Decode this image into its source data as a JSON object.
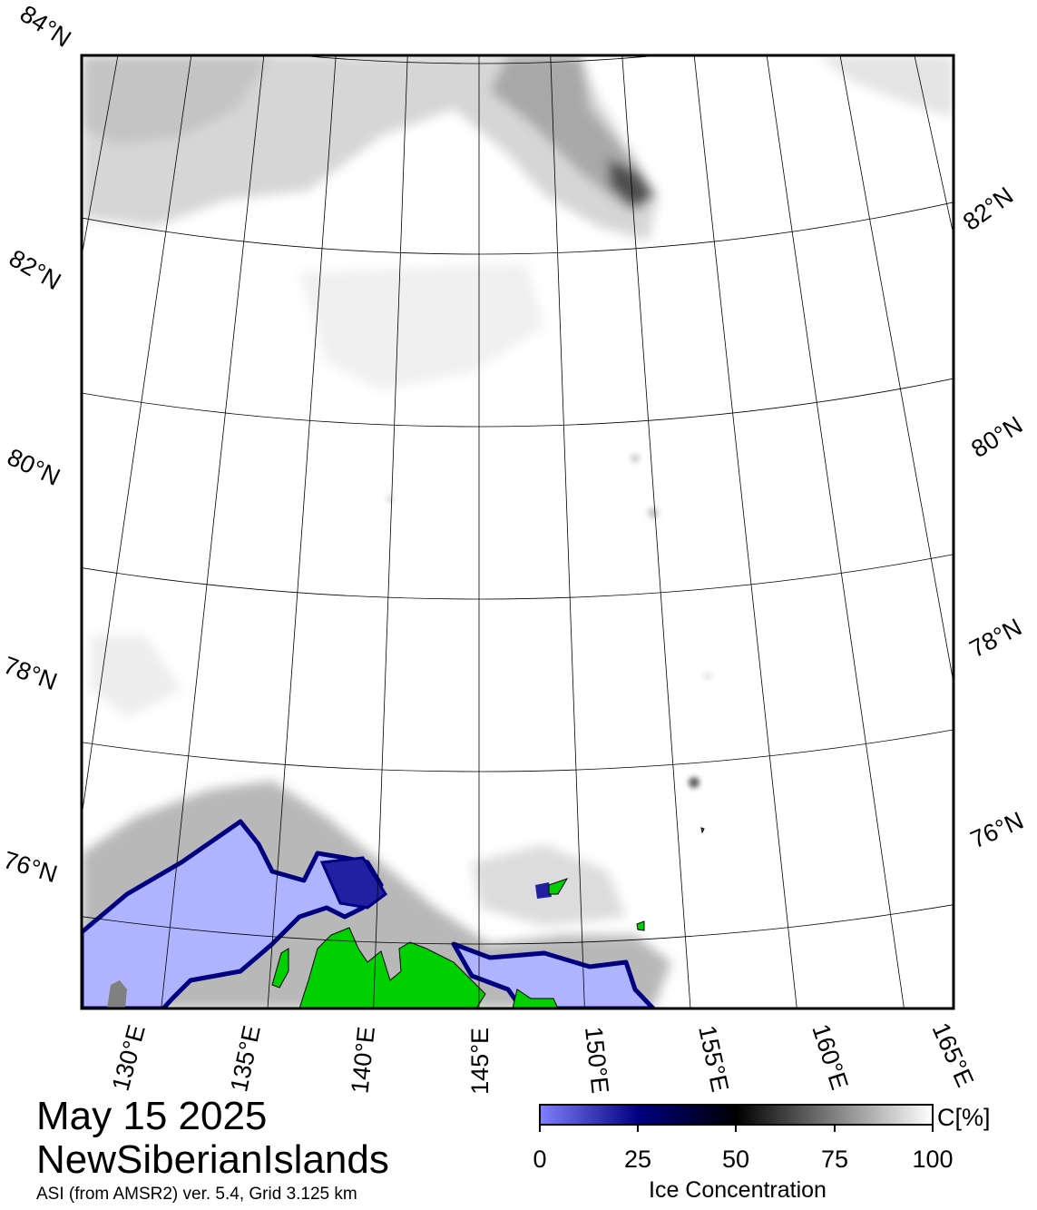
{
  "map": {
    "date": "May 15 2025",
    "region": "NewSiberianIslands",
    "source_text": "ASI (from AMSR2) ver. 5.4,  Grid 3.125 km",
    "latitude_labels": [
      "84°N",
      "82°N",
      "80°N",
      "78°N",
      "76°N"
    ],
    "right_latitude_labels": [
      "82°N",
      "80°N",
      "78°N",
      "76°N"
    ],
    "longitude_labels": [
      "130°E",
      "135°E",
      "140°E",
      "145°E",
      "150°E",
      "155°E",
      "160°E",
      "165°E"
    ],
    "colors": {
      "land": "#00d000",
      "open_water": "#ffffff",
      "low_concentration": "#b0b4ff",
      "ice_edge": "#000080",
      "frame": "#000000"
    }
  },
  "colorbar": {
    "label": "Ice Concentration",
    "unit": "C[%]",
    "ticks": [
      "0",
      "25",
      "50",
      "75",
      "100"
    ],
    "gradient_stops": [
      "#8080ff",
      "#000080",
      "#000000",
      "#808080",
      "#ffffff"
    ]
  }
}
